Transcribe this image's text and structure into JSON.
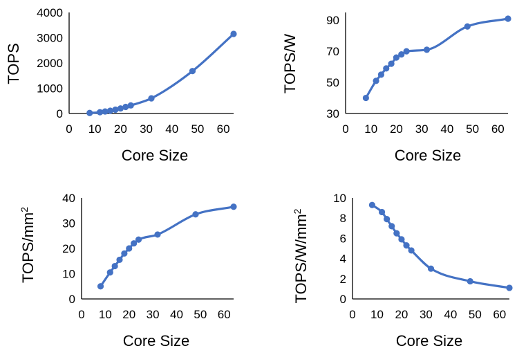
{
  "chart_data": [
    {
      "type": "line",
      "title": "",
      "xlabel": "Core Size",
      "ylabel": "TOPS",
      "xlim": [
        0,
        64
      ],
      "ylim": [
        0,
        4000
      ],
      "xticks": [
        0,
        10,
        20,
        30,
        40,
        50,
        60
      ],
      "yticks": [
        0,
        1000,
        2000,
        3000,
        4000
      ],
      "x": [
        8,
        12,
        14,
        16,
        18,
        20,
        22,
        24,
        32,
        48,
        64
      ],
      "y": [
        20,
        50,
        80,
        110,
        150,
        200,
        260,
        320,
        600,
        1680,
        3150
      ],
      "color": "#4472C4"
    },
    {
      "type": "line",
      "title": "",
      "xlabel": "Core Size",
      "ylabel": "TOPS/W",
      "xlim": [
        0,
        64
      ],
      "ylim": [
        30,
        95
      ],
      "xticks": [
        0,
        10,
        20,
        30,
        40,
        50,
        60
      ],
      "yticks": [
        30,
        50,
        70,
        90
      ],
      "x": [
        8,
        12,
        14,
        16,
        18,
        20,
        22,
        24,
        32,
        48,
        64
      ],
      "y": [
        40,
        51,
        55,
        59,
        62,
        66,
        68,
        70,
        71,
        86,
        91
      ],
      "color": "#4472C4"
    },
    {
      "type": "line",
      "title": "",
      "xlabel": "Core Size",
      "ylabel": "TOPS/mm",
      "ylabel_sup": "2",
      "xlim": [
        0,
        64
      ],
      "ylim": [
        0,
        40
      ],
      "xticks": [
        0,
        10,
        20,
        30,
        40,
        50,
        60
      ],
      "yticks": [
        0,
        10,
        20,
        30,
        40
      ],
      "x": [
        8,
        12,
        14,
        16,
        18,
        20,
        22,
        24,
        32,
        48,
        64
      ],
      "y": [
        5,
        10.5,
        13,
        15.5,
        18,
        20,
        22,
        23.5,
        25.5,
        33.5,
        36.5
      ],
      "color": "#4472C4"
    },
    {
      "type": "line",
      "title": "",
      "xlabel": "Core Size",
      "ylabel": "TOPS/W/mm",
      "ylabel_sup": "2",
      "xlim": [
        0,
        64
      ],
      "ylim": [
        0,
        10
      ],
      "xticks": [
        0,
        10,
        20,
        30,
        40,
        50,
        60
      ],
      "yticks": [
        0,
        2,
        4,
        6,
        8,
        10
      ],
      "x": [
        8,
        12,
        14,
        16,
        18,
        20,
        22,
        24,
        32,
        48,
        64
      ],
      "y": [
        9.3,
        8.6,
        7.9,
        7.2,
        6.5,
        5.9,
        5.3,
        4.8,
        3.0,
        1.75,
        1.1
      ],
      "color": "#4472C4"
    }
  ]
}
